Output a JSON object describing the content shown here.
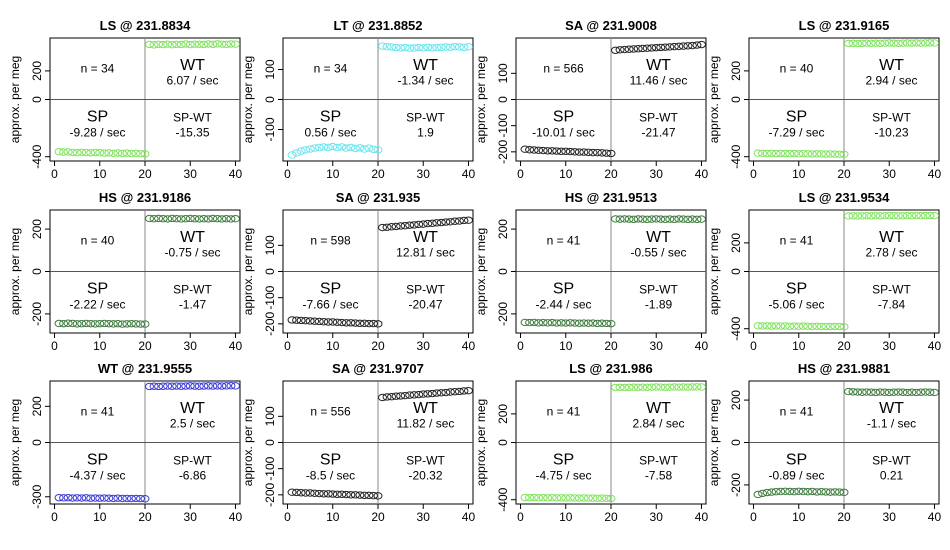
{
  "chart_data": [
    {
      "type": "scatter",
      "title": "LS @ 231.8834",
      "ylabel": "approx. per meg",
      "yticks": [
        -400,
        0,
        200
      ],
      "ylim": [
        -430,
        430
      ],
      "xticks": [
        0,
        10,
        20,
        30,
        40
      ],
      "xlim": [
        -1,
        41
      ],
      "n": "n = 34",
      "sp": "SP",
      "sp_rate": "-9.28 / sec",
      "wt": "WT",
      "wt_rate": "6.07 / sec",
      "spwt": "SP-WT",
      "spwt_val": "-15.35",
      "color": "#7fe35c",
      "sp_y": [
        -365,
        -368,
        -366,
        -370,
        -372,
        -369,
        -371,
        -373,
        -370,
        -372,
        -375,
        -373,
        -376,
        -374,
        -377,
        -375,
        -378,
        -376,
        -379,
        -380
      ],
      "wt_y": [
        385,
        382,
        386,
        384,
        387,
        383,
        386,
        385,
        388,
        384,
        387,
        386,
        385,
        388,
        386,
        389,
        387,
        386,
        388,
        387
      ]
    },
    {
      "type": "scatter",
      "title": "LT @ 231.8852",
      "ylabel": "approx. per meg",
      "yticks": [
        -100,
        0,
        100
      ],
      "ylim": [
        -205,
        205
      ],
      "xticks": [
        0,
        10,
        20,
        30,
        40
      ],
      "xlim": [
        -1,
        41
      ],
      "n": "n = 34",
      "sp": "SP",
      "sp_rate": "0.56 / sec",
      "wt": "WT",
      "wt_rate": "-1.34 / sec",
      "spwt": "SP-WT",
      "spwt_val": "1.9",
      "color": "#66e6ee",
      "sp_y": [
        -185,
        -178,
        -172,
        -168,
        -165,
        -162,
        -160,
        -158,
        -160,
        -157,
        -160,
        -158,
        -162,
        -160,
        -163,
        -161,
        -165,
        -162,
        -166,
        -168
      ],
      "wt_y": [
        178,
        176,
        175,
        173,
        172,
        173,
        171,
        172,
        173,
        172,
        174,
        172,
        173,
        174,
        175,
        174,
        176,
        175,
        174,
        176
      ]
    },
    {
      "type": "scatter",
      "title": "SA @ 231.9008",
      "ylabel": "approx. per meg",
      "yticks": [
        -200,
        -100,
        0,
        100
      ],
      "ylim": [
        -235,
        235
      ],
      "xticks": [
        0,
        10,
        20,
        30,
        40
      ],
      "xlim": [
        -1,
        41
      ],
      "n": "n = 566",
      "sp": "SP",
      "sp_rate": "-10.01 / sec",
      "wt": "WT",
      "wt_rate": "11.46 / sec",
      "spwt": "SP-WT",
      "spwt_val": "-21.47",
      "color": "#222222",
      "sp_y": [
        -190,
        -192,
        -193,
        -194,
        -195,
        -196,
        -196,
        -197,
        -198,
        -198,
        -199,
        -200,
        -201,
        -201,
        -202,
        -203,
        -203,
        -204,
        -205,
        -206
      ],
      "wt_y": [
        188,
        190,
        191,
        192,
        193,
        194,
        195,
        196,
        197,
        198,
        199,
        200,
        201,
        202,
        203,
        204,
        205,
        206,
        208,
        210
      ]
    },
    {
      "type": "scatter",
      "title": "LS @ 231.9165",
      "ylabel": "approx. per meg",
      "yticks": [
        -400,
        0,
        200
      ],
      "ylim": [
        -430,
        430
      ],
      "xticks": [
        0,
        10,
        20,
        30,
        40
      ],
      "xlim": [
        -1,
        41
      ],
      "n": "n = 40",
      "sp": "SP",
      "sp_rate": "-7.29 / sec",
      "wt": "WT",
      "wt_rate": "2.94 / sec",
      "spwt": "SP-WT",
      "spwt_val": "-10.23",
      "color": "#7fe35c",
      "sp_y": [
        -375,
        -376,
        -377,
        -376,
        -378,
        -377,
        -378,
        -379,
        -378,
        -380,
        -379,
        -380,
        -381,
        -380,
        -381,
        -382,
        -381,
        -382,
        -383,
        -383
      ],
      "wt_y": [
        392,
        393,
        392,
        393,
        394,
        393,
        394,
        393,
        394,
        395,
        394,
        393,
        394,
        395,
        394,
        395,
        394,
        395,
        396,
        395
      ]
    },
    {
      "type": "scatter",
      "title": "HS @ 231.9186",
      "ylabel": "approx. per meg",
      "yticks": [
        -200,
        0,
        200
      ],
      "ylim": [
        -290,
        290
      ],
      "xticks": [
        0,
        10,
        20,
        30,
        40
      ],
      "xlim": [
        -1,
        41
      ],
      "n": "n = 40",
      "sp": "SP",
      "sp_rate": "-2.22 / sec",
      "wt": "WT",
      "wt_rate": "-0.75 / sec",
      "spwt": "SP-WT",
      "spwt_val": "-1.47",
      "color": "#3d7a3d",
      "sp_y": [
        -245,
        -246,
        -244,
        -245,
        -247,
        -246,
        -245,
        -246,
        -247,
        -246,
        -245,
        -246,
        -247,
        -246,
        -248,
        -247,
        -246,
        -247,
        -248,
        -248
      ],
      "wt_y": [
        250,
        249,
        250,
        249,
        248,
        250,
        249,
        248,
        249,
        250,
        249,
        248,
        249,
        248,
        250,
        249,
        248,
        249,
        248,
        249
      ]
    },
    {
      "type": "scatter",
      "title": "SA @ 231.935",
      "ylabel": "approx. per meg",
      "yticks": [
        -200,
        -100,
        0,
        100
      ],
      "ylim": [
        -235,
        235
      ],
      "xticks": [
        0,
        10,
        20,
        30,
        40
      ],
      "xlim": [
        -1,
        41
      ],
      "n": "n = 598",
      "sp": "SP",
      "sp_rate": "-7.66 / sec",
      "wt": "WT",
      "wt_rate": "12.81 / sec",
      "spwt": "SP-WT",
      "spwt_val": "-20.47",
      "color": "#222222",
      "sp_y": [
        -185,
        -186,
        -187,
        -188,
        -189,
        -190,
        -191,
        -192,
        -193,
        -193,
        -194,
        -195,
        -196,
        -196,
        -197,
        -198,
        -198,
        -199,
        -199,
        -200
      ],
      "wt_y": [
        168,
        169,
        171,
        172,
        174,
        175,
        177,
        178,
        180,
        181,
        183,
        184,
        186,
        187,
        189,
        190,
        192,
        193,
        195,
        196
      ]
    },
    {
      "type": "scatter",
      "title": "HS @ 231.9513",
      "ylabel": "approx. per meg",
      "yticks": [
        -200,
        0,
        200
      ],
      "ylim": [
        -290,
        290
      ],
      "xticks": [
        0,
        10,
        20,
        30,
        40
      ],
      "xlim": [
        -1,
        41
      ],
      "n": "n = 41",
      "sp": "SP",
      "sp_rate": "-2.44 / sec",
      "wt": "WT",
      "wt_rate": "-0.55 / sec",
      "spwt": "SP-WT",
      "spwt_val": "-1.89",
      "color": "#3d7a3d",
      "sp_y": [
        -240,
        -241,
        -240,
        -242,
        -241,
        -242,
        -241,
        -243,
        -242,
        -243,
        -242,
        -243,
        -244,
        -243,
        -244,
        -243,
        -245,
        -244,
        -245,
        -246
      ],
      "wt_y": [
        248,
        247,
        248,
        247,
        246,
        248,
        247,
        246,
        247,
        248,
        247,
        246,
        247,
        246,
        248,
        247,
        246,
        247,
        246,
        247
      ]
    },
    {
      "type": "scatter",
      "title": "LS @ 231.9534",
      "ylabel": "approx. per meg",
      "yticks": [
        -400,
        0,
        200
      ],
      "ylim": [
        -430,
        430
      ],
      "xticks": [
        0,
        10,
        20,
        30,
        40
      ],
      "xlim": [
        -1,
        41
      ],
      "n": "n = 41",
      "sp": "SP",
      "sp_rate": "-5.06 / sec",
      "wt": "WT",
      "wt_rate": "2.78 / sec",
      "spwt": "SP-WT",
      "spwt_val": "-7.84",
      "color": "#7fe35c",
      "sp_y": [
        -380,
        -381,
        -380,
        -382,
        -381,
        -382,
        -381,
        -383,
        -382,
        -383,
        -382,
        -383,
        -384,
        -383,
        -384,
        -384,
        -385,
        -384,
        -385,
        -386
      ],
      "wt_y": [
        388,
        389,
        388,
        389,
        390,
        389,
        390,
        389,
        390,
        391,
        390,
        389,
        390,
        391,
        390,
        391,
        390,
        391,
        392,
        391
      ]
    },
    {
      "type": "scatter",
      "title": "WT @ 231.9555",
      "ylabel": "approx. per meg",
      "yticks": [
        -300,
        0,
        200
      ],
      "ylim": [
        -340,
        340
      ],
      "xticks": [
        0,
        10,
        20,
        30,
        40
      ],
      "xlim": [
        -1,
        41
      ],
      "n": "n = 41",
      "sp": "SP",
      "sp_rate": "-4.37 / sec",
      "wt": "WT",
      "wt_rate": "2.5 / sec",
      "spwt": "SP-WT",
      "spwt_val": "-6.86",
      "color": "#3a3ad6",
      "sp_y": [
        -305,
        -306,
        -305,
        -307,
        -306,
        -307,
        -306,
        -308,
        -307,
        -308,
        -307,
        -308,
        -309,
        -308,
        -309,
        -309,
        -310,
        -309,
        -310,
        -311
      ],
      "wt_y": [
        310,
        311,
        310,
        311,
        312,
        311,
        312,
        311,
        312,
        313,
        312,
        311,
        312,
        313,
        312,
        313,
        312,
        313,
        314,
        313
      ]
    },
    {
      "type": "scatter",
      "title": "SA @ 231.9707",
      "ylabel": "approx. per meg",
      "yticks": [
        -200,
        -100,
        0,
        100
      ],
      "ylim": [
        -235,
        235
      ],
      "xticks": [
        0,
        10,
        20,
        30,
        40
      ],
      "xlim": [
        -1,
        41
      ],
      "n": "n = 556",
      "sp": "SP",
      "sp_rate": "-8.5 / sec",
      "wt": "WT",
      "wt_rate": "11.82 / sec",
      "spwt": "SP-WT",
      "spwt_val": "-20.32",
      "color": "#222222",
      "sp_y": [
        -190,
        -191,
        -192,
        -193,
        -193,
        -194,
        -195,
        -196,
        -196,
        -197,
        -198,
        -198,
        -199,
        -200,
        -200,
        -201,
        -202,
        -202,
        -203,
        -204
      ],
      "wt_y": [
        172,
        174,
        175,
        177,
        178,
        179,
        181,
        182,
        183,
        185,
        186,
        187,
        189,
        190,
        191,
        193,
        194,
        195,
        197,
        198
      ]
    },
    {
      "type": "scatter",
      "title": "LS @ 231.986",
      "ylabel": "approx. per meg",
      "yticks": [
        -400,
        0,
        200
      ],
      "ylim": [
        -430,
        430
      ],
      "xticks": [
        0,
        10,
        20,
        30,
        40
      ],
      "xlim": [
        -1,
        41
      ],
      "n": "n = 41",
      "sp": "SP",
      "sp_rate": "-4.75 / sec",
      "wt": "WT",
      "wt_rate": "2.84 / sec",
      "spwt": "SP-WT",
      "spwt_val": "-7.58",
      "color": "#7fe35c",
      "sp_y": [
        -385,
        -386,
        -385,
        -387,
        -386,
        -387,
        -386,
        -388,
        -387,
        -388,
        -387,
        -388,
        -389,
        -388,
        -389,
        -389,
        -390,
        -389,
        -390,
        -391
      ],
      "wt_y": [
        385,
        386,
        385,
        386,
        387,
        386,
        387,
        386,
        387,
        388,
        387,
        386,
        387,
        388,
        387,
        388,
        387,
        388,
        389,
        388
      ]
    },
    {
      "type": "scatter",
      "title": "HS @ 231.9881",
      "ylabel": "approx. per meg",
      "yticks": [
        -200,
        0,
        200
      ],
      "ylim": [
        -290,
        290
      ],
      "xticks": [
        0,
        10,
        20,
        30,
        40
      ],
      "xlim": [
        -1,
        41
      ],
      "n": "n = 41",
      "sp": "SP",
      "sp_rate": "-0.89 / sec",
      "wt": "WT",
      "wt_rate": "-1.1 / sec",
      "spwt": "SP-WT",
      "spwt_val": "0.21",
      "color": "#3d7a3d",
      "sp_y": [
        -245,
        -240,
        -236,
        -234,
        -232,
        -231,
        -230,
        -231,
        -232,
        -230,
        -231,
        -232,
        -231,
        -233,
        -232,
        -233,
        -234,
        -233,
        -234,
        -235
      ],
      "wt_y": [
        240,
        239,
        238,
        237,
        238,
        237,
        236,
        238,
        237,
        236,
        237,
        238,
        237,
        236,
        237,
        236,
        237,
        238,
        237,
        236
      ]
    }
  ]
}
